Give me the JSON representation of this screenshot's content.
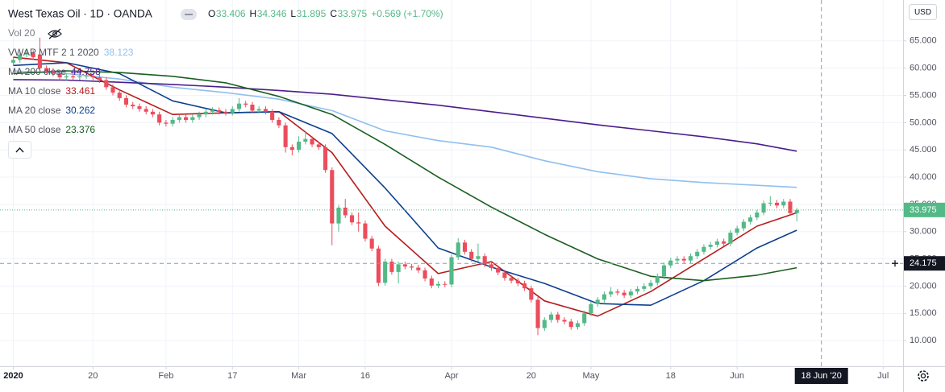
{
  "chart_data": {
    "type": "candlestick",
    "title": "West Texas Oil · 1D · OANDA",
    "ohlc_labels": [
      "O",
      "H",
      "L",
      "C"
    ],
    "change": "+0.569 (+1.70%)",
    "volume_label": "Vol 20",
    "currency": "USD",
    "up_color": "#53b987",
    "down_color": "#eb4d5c",
    "grid": true,
    "xlim": [
      -2,
      134
    ],
    "ylim": [
      5.3,
      72.5
    ],
    "yticks": [
      {
        "value": 10,
        "label": "10.000"
      },
      {
        "value": 15,
        "label": "15.000"
      },
      {
        "value": 20,
        "label": "20.000"
      },
      {
        "value": 25,
        "label": "25.000"
      },
      {
        "value": 30,
        "label": "30.000"
      },
      {
        "value": 35,
        "label": "35.000"
      },
      {
        "value": 40,
        "label": "40.000"
      },
      {
        "value": 45,
        "label": "45.000"
      },
      {
        "value": 50,
        "label": "50.000"
      },
      {
        "value": 55,
        "label": "55.000"
      },
      {
        "value": 60,
        "label": "60.000"
      },
      {
        "value": 65,
        "label": "65.000"
      }
    ],
    "xticks": [
      {
        "value": 0,
        "label": "2020"
      },
      {
        "value": 12,
        "label": "20"
      },
      {
        "value": 23,
        "label": "Feb"
      },
      {
        "value": 33,
        "label": "17"
      },
      {
        "value": 43,
        "label": "Mar"
      },
      {
        "value": 53,
        "label": "16"
      },
      {
        "value": 66,
        "label": "Apr"
      },
      {
        "value": 78,
        "label": "20"
      },
      {
        "value": 87,
        "label": "May"
      },
      {
        "value": 99,
        "label": "18"
      },
      {
        "value": 109,
        "label": "Jun"
      },
      {
        "value": 131,
        "label": "Jul"
      }
    ],
    "crosshair": {
      "x": 121.7,
      "x_label": "18 Jun '20",
      "y": 24.175
    },
    "candles": [
      [
        61.0,
        62.0,
        60.5,
        61.5
      ],
      [
        61.5,
        63.0,
        61.0,
        62.5
      ],
      [
        62.5,
        63.3,
        62.0,
        62.8
      ],
      [
        62.8,
        63.3,
        61.5,
        62.0
      ],
      [
        62.5,
        65.6,
        59.5,
        60.0
      ],
      [
        60.0,
        60.5,
        59.0,
        59.5
      ],
      [
        59.5,
        60.0,
        58.5,
        59.0
      ],
      [
        59.0,
        59.5,
        57.8,
        58.3
      ],
      [
        58.3,
        59.0,
        57.8,
        58.5
      ],
      [
        58.5,
        59.0,
        57.8,
        58.3
      ],
      [
        58.3,
        59.0,
        57.8,
        58.5
      ],
      [
        58.5,
        59.1,
        58.0,
        58.6
      ],
      [
        58.6,
        59.1,
        57.8,
        58.3
      ],
      [
        58.3,
        58.8,
        57.3,
        57.8
      ],
      [
        57.8,
        58.3,
        56.0,
        56.5
      ],
      [
        56.5,
        57.0,
        55.0,
        55.5
      ],
      [
        55.5,
        56.0,
        54.0,
        54.5
      ],
      [
        54.5,
        55.0,
        52.8,
        53.3
      ],
      [
        53.3,
        53.8,
        52.5,
        53.0
      ],
      [
        53.0,
        53.5,
        52.0,
        52.5
      ],
      [
        52.5,
        53.0,
        51.5,
        52.0
      ],
      [
        52.0,
        52.5,
        51.0,
        51.5
      ],
      [
        51.5,
        52.0,
        49.5,
        50.0
      ],
      [
        50.0,
        50.5,
        49.3,
        49.8
      ],
      [
        49.8,
        51.0,
        49.3,
        50.5
      ],
      [
        50.5,
        51.5,
        50.0,
        51.0
      ],
      [
        51.0,
        51.5,
        50.0,
        50.5
      ],
      [
        50.5,
        51.5,
        50.0,
        51.0
      ],
      [
        51.0,
        52.0,
        50.5,
        51.5
      ],
      [
        51.5,
        52.5,
        51.0,
        52.0
      ],
      [
        52.0,
        52.8,
        51.5,
        52.3
      ],
      [
        52.3,
        52.8,
        51.5,
        52.0
      ],
      [
        52.0,
        52.5,
        51.3,
        51.8
      ],
      [
        51.8,
        53.0,
        51.3,
        52.5
      ],
      [
        52.5,
        54.5,
        52.0,
        53.5
      ],
      [
        53.5,
        54.0,
        52.8,
        53.3
      ],
      [
        53.3,
        53.8,
        51.7,
        52.2
      ],
      [
        52.2,
        53.0,
        51.7,
        52.5
      ],
      [
        52.5,
        53.0,
        51.5,
        52.0
      ],
      [
        52.0,
        52.5,
        50.0,
        50.5
      ],
      [
        50.5,
        51.0,
        49.0,
        49.5
      ],
      [
        49.5,
        50.0,
        44.5,
        45.5
      ],
      [
        45.5,
        46.0,
        44.0,
        45.0
      ],
      [
        45.0,
        47.5,
        44.5,
        46.5
      ],
      [
        46.5,
        48.5,
        46.0,
        47.0
      ],
      [
        47.0,
        47.5,
        45.5,
        46.0
      ],
      [
        46.0,
        46.5,
        45.0,
        45.5
      ],
      [
        45.5,
        46.0,
        40.8,
        41.3
      ],
      [
        41.3,
        41.8,
        27.5,
        31.5
      ],
      [
        31.5,
        34.9,
        30.0,
        34.4
      ],
      [
        34.4,
        36.0,
        32.5,
        33.0
      ],
      [
        33.0,
        33.5,
        31.2,
        31.7
      ],
      [
        31.7,
        33.5,
        30.0,
        31.5
      ],
      [
        31.5,
        32.0,
        28.2,
        28.7
      ],
      [
        28.7,
        29.2,
        26.4,
        26.9
      ],
      [
        26.9,
        27.4,
        20.0,
        20.6
      ],
      [
        20.6,
        25.0,
        20.1,
        24.5
      ],
      [
        24.5,
        25.0,
        22.1,
        22.6
      ],
      [
        22.6,
        24.5,
        20.5,
        24.0
      ],
      [
        24.0,
        24.5,
        23.1,
        23.6
      ],
      [
        23.6,
        24.1,
        22.9,
        23.4
      ],
      [
        23.4,
        23.9,
        22.4,
        22.9
      ],
      [
        22.9,
        23.4,
        20.9,
        21.4
      ],
      [
        21.4,
        21.9,
        19.6,
        20.1
      ],
      [
        20.1,
        20.9,
        19.6,
        20.4
      ],
      [
        20.4,
        20.9,
        19.8,
        20.3
      ],
      [
        20.3,
        25.8,
        19.8,
        25.3
      ],
      [
        25.3,
        28.8,
        24.8,
        28.0
      ],
      [
        28.0,
        28.5,
        25.8,
        26.3
      ],
      [
        26.3,
        26.8,
        24.5,
        25.0
      ],
      [
        25.0,
        27.8,
        24.5,
        25.5
      ],
      [
        25.5,
        26.0,
        23.5,
        24.0
      ],
      [
        24.0,
        24.5,
        22.8,
        23.3
      ],
      [
        23.3,
        23.8,
        22.0,
        22.5
      ],
      [
        22.5,
        23.0,
        21.0,
        21.5
      ],
      [
        21.5,
        22.0,
        20.5,
        21.0
      ],
      [
        21.0,
        21.5,
        20.0,
        20.5
      ],
      [
        20.5,
        21.0,
        19.1,
        19.6
      ],
      [
        19.6,
        20.1,
        17.0,
        17.5
      ],
      [
        17.5,
        18.0,
        11.0,
        12.3
      ],
      [
        12.3,
        14.3,
        11.8,
        13.8
      ],
      [
        13.8,
        15.3,
        13.3,
        14.8
      ],
      [
        14.8,
        15.3,
        13.3,
        13.8
      ],
      [
        13.8,
        14.3,
        13.0,
        13.5
      ],
      [
        13.5,
        14.0,
        12.0,
        12.5
      ],
      [
        12.5,
        13.7,
        12.0,
        13.2
      ],
      [
        13.2,
        15.5,
        12.7,
        15.0
      ],
      [
        15.0,
        17.2,
        14.5,
        16.7
      ],
      [
        16.7,
        18.0,
        16.2,
        17.5
      ],
      [
        17.5,
        19.0,
        17.0,
        18.5
      ],
      [
        18.5,
        19.8,
        18.0,
        19.0
      ],
      [
        19.0,
        19.5,
        18.3,
        18.8
      ],
      [
        18.8,
        19.3,
        17.8,
        18.3
      ],
      [
        18.3,
        19.5,
        17.8,
        19.0
      ],
      [
        19.0,
        20.0,
        18.5,
        19.5
      ],
      [
        19.5,
        20.5,
        19.0,
        20.0
      ],
      [
        20.0,
        21.1,
        19.5,
        20.6
      ],
      [
        20.6,
        22.3,
        20.1,
        21.8
      ],
      [
        21.8,
        24.3,
        21.3,
        23.8
      ],
      [
        23.8,
        25.2,
        23.3,
        24.7
      ],
      [
        24.7,
        25.5,
        24.2,
        25.0
      ],
      [
        25.0,
        25.5,
        24.2,
        24.7
      ],
      [
        24.7,
        26.0,
        24.2,
        25.5
      ],
      [
        25.5,
        26.8,
        25.0,
        26.3
      ],
      [
        26.3,
        27.7,
        25.8,
        27.2
      ],
      [
        27.2,
        28.1,
        26.7,
        27.6
      ],
      [
        27.6,
        28.7,
        27.1,
        28.2
      ],
      [
        28.2,
        28.7,
        27.3,
        27.8
      ],
      [
        27.8,
        30.3,
        27.3,
        29.8
      ],
      [
        29.8,
        31.1,
        29.3,
        30.6
      ],
      [
        30.6,
        32.3,
        30.1,
        31.8
      ],
      [
        31.8,
        33.1,
        31.3,
        32.6
      ],
      [
        32.6,
        34.0,
        32.1,
        33.5
      ],
      [
        33.5,
        35.7,
        33.0,
        35.2
      ],
      [
        35.2,
        36.5,
        34.7,
        35.3
      ],
      [
        35.3,
        35.8,
        34.3,
        34.8
      ],
      [
        34.8,
        36.0,
        34.3,
        35.5
      ],
      [
        35.5,
        36.0,
        32.9,
        33.4
      ],
      [
        33.406,
        34.346,
        31.895,
        33.975
      ]
    ],
    "line_x": [
      0,
      8,
      16,
      24,
      32,
      40,
      48,
      56,
      64,
      72,
      80,
      88,
      96,
      104,
      112,
      118
    ],
    "series": [
      {
        "name": "VWAP MTF 2 1 2020",
        "color": "#90bff0",
        "values": [
          59.5,
          59.0,
          58.0,
          56.5,
          55.5,
          54.3,
          52.2,
          48.5,
          46.7,
          45.5,
          43.0,
          41.0,
          39.7,
          39.0,
          38.5,
          38.123
        ]
      },
      {
        "name": "MA 200 close",
        "color": "#4a1d8a",
        "values": [
          57.9,
          57.8,
          57.4,
          57.0,
          56.5,
          55.9,
          55.2,
          54.2,
          53.2,
          52.0,
          50.8,
          49.6,
          48.5,
          47.4,
          46.1,
          44.758
        ]
      },
      {
        "name": "MA 10 close",
        "color": "#b71c1c",
        "values": [
          62.0,
          61.0,
          56.0,
          51.5,
          51.8,
          52.0,
          44.5,
          31.0,
          22.3,
          24.5,
          17.3,
          14.5,
          19.0,
          25.0,
          31.0,
          33.461
        ]
      },
      {
        "name": "MA 20 close",
        "color": "#0d3f8f",
        "values": [
          60.5,
          61.0,
          59.0,
          54.0,
          51.8,
          52.0,
          48.0,
          38.0,
          27.0,
          23.5,
          20.5,
          16.8,
          16.5,
          21.0,
          27.0,
          30.262
        ]
      },
      {
        "name": "MA 50 close",
        "color": "#1b5e20",
        "values": [
          59.0,
          59.5,
          59.2,
          58.5,
          57.3,
          54.8,
          51.5,
          46.0,
          40.0,
          34.5,
          29.5,
          25.0,
          21.8,
          21.0,
          22.0,
          23.376
        ]
      }
    ]
  }
}
